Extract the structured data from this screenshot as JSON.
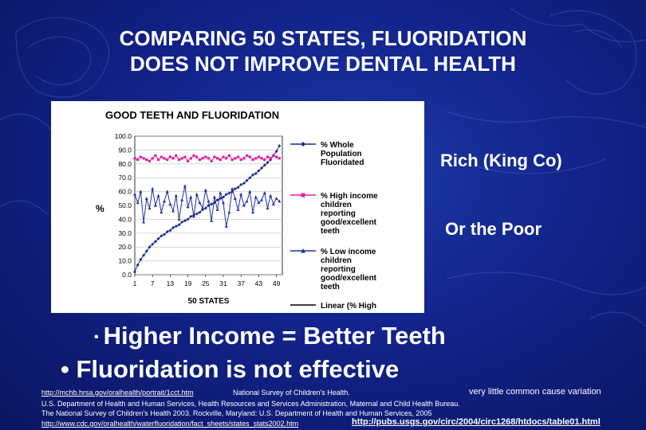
{
  "slide": {
    "title_line1": "COMPARING 50 STATES, FLUORIDATION",
    "title_line2": "DOES NOT IMPROVE DENTAL HEALTH",
    "label_rich": "Rich  (King Co)",
    "label_poor": "Or the Poor",
    "bullet1": "Higher Income = Better Teeth",
    "bullet2": "Fluoridation is not effective",
    "colors": {
      "background": "#12238a",
      "text": "#ffffff"
    }
  },
  "sources": {
    "link1": "http://mchb.hrsa.gov/oralhealth/portrait/1cct.htm",
    "survey": "National Survey of Children's Health.",
    "note": "very little common cause variation",
    "line2": "U.S. Department of Health and Human Services, Health Resources and Services Administration, Maternal and Child Health Bureau.",
    "line3": "The National Survey of Children's Health 2003. Rockville, Maryland: U.S. Department of Health and Human Services, 2005",
    "link2": "http://www.cdc.gov/oralhealth/waterfluoridation/fact_sheets/states_stats2002.htm",
    "link3": "http://pubs.usgs.gov/circ/2004/circ1268/htdocs/table01.html"
  },
  "chart_data": {
    "type": "line",
    "title": "GOOD TEETH AND FLUORIDATION",
    "xlabel": "50 STATES",
    "ylabel": "%",
    "x_ticks": [
      "1",
      "7",
      "13",
      "19",
      "25",
      "31",
      "37",
      "43",
      "49"
    ],
    "y_ticks": [
      "0.0",
      "10.0",
      "20.0",
      "30.0",
      "40.0",
      "50.0",
      "60.0",
      "70.0",
      "80.0",
      "90.0",
      "100.0"
    ],
    "ylim": [
      0,
      100
    ],
    "xlim": [
      1,
      51
    ],
    "grid": true,
    "legend_position": "right",
    "series": [
      {
        "name": "% Whole Population Fluoridated",
        "color": "#1a2a8a",
        "marker": "diamond",
        "values": [
          2,
          7,
          11,
          14,
          17,
          20,
          22,
          24,
          26,
          28,
          29,
          31,
          32,
          34,
          35,
          36,
          38,
          39,
          40,
          42,
          43,
          44,
          45,
          47,
          48,
          50,
          51,
          52,
          54,
          55,
          56,
          58,
          59,
          60,
          62,
          63,
          65,
          66,
          68,
          70,
          72,
          73,
          75,
          77,
          79,
          81,
          83,
          86,
          89,
          93
        ]
      },
      {
        "name": "% High income children reporting good/excellent teeth",
        "color": "#e020a0",
        "marker": "square",
        "values": [
          84,
          83,
          85,
          84,
          83,
          82,
          84,
          86,
          83,
          85,
          84,
          83,
          85,
          84,
          86,
          83,
          84,
          85,
          82,
          84,
          86,
          85,
          83,
          84,
          85,
          84,
          82,
          85,
          84,
          83,
          85,
          84,
          86,
          83,
          84,
          85,
          83,
          84,
          86,
          85,
          83,
          84,
          85,
          84,
          83,
          85,
          84,
          86,
          85,
          84
        ]
      },
      {
        "name": "% Low income children reporting good/excellent teeth",
        "color": "#2030a0",
        "marker": "triangle",
        "values": [
          58,
          52,
          60,
          38,
          55,
          48,
          62,
          50,
          57,
          45,
          53,
          60,
          51,
          46,
          57,
          40,
          54,
          64,
          49,
          56,
          42,
          58,
          52,
          48,
          61,
          53,
          39,
          56,
          47,
          59,
          52,
          35,
          45,
          62,
          55,
          47,
          58,
          50,
          53,
          60,
          45,
          56,
          52,
          54,
          59,
          48,
          57,
          51,
          55,
          53
        ]
      },
      {
        "name": "Linear (% High",
        "color": "#000000",
        "marker": "none",
        "values": []
      }
    ]
  }
}
